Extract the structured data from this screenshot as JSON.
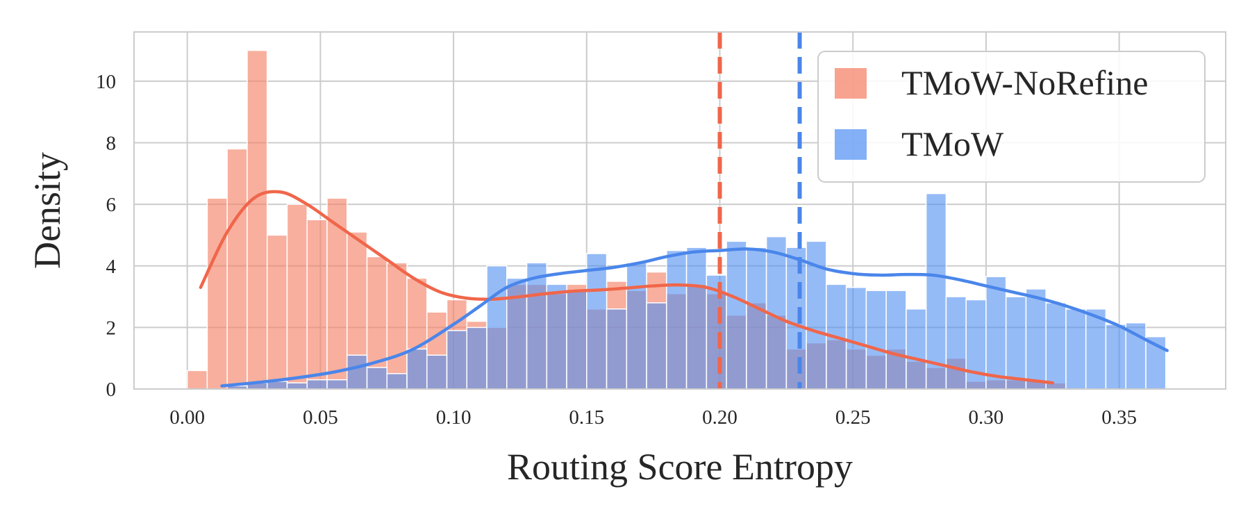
{
  "chart_data": {
    "type": "histogram",
    "title": "",
    "xlabel": "Routing Score Entropy",
    "ylabel": "Density",
    "xlim": [
      -0.02,
      0.39
    ],
    "ylim": [
      0,
      11.6
    ],
    "xticks": [
      0.0,
      0.05,
      0.1,
      0.15,
      0.2,
      0.25,
      0.3,
      0.35
    ],
    "xtick_labels": [
      "0.00",
      "0.05",
      "0.10",
      "0.15",
      "0.20",
      "0.25",
      "0.30",
      "0.35"
    ],
    "yticks": [
      0,
      2,
      4,
      6,
      8,
      10
    ],
    "ytick_labels": [
      "0",
      "2",
      "4",
      "6",
      "8",
      "10"
    ],
    "grid": true,
    "legend_position": "top-right",
    "bin_width": 0.0075,
    "series": [
      {
        "name": "TMoW-NoRefine",
        "color": "#f4846a",
        "fill_opacity": 0.65,
        "bin_start": 0.0,
        "densities": [
          0.6,
          6.2,
          7.8,
          11.0,
          5.0,
          6.0,
          5.5,
          6.2,
          5.1,
          4.3,
          4.1,
          3.6,
          2.5,
          2.9,
          2.2,
          2.0,
          3.4,
          3.4,
          3.1,
          3.4,
          2.6,
          3.5,
          3.2,
          3.8,
          3.1,
          3.4,
          3.1,
          2.4,
          2.8,
          2.4,
          1.3,
          1.5,
          1.6,
          1.3,
          1.1,
          1.3,
          0.9,
          0.7,
          1.0,
          0.25,
          0.3,
          0.3,
          0.3,
          0.2
        ],
        "kde": {
          "x": [
            0.005,
            0.015,
            0.025,
            0.035,
            0.045,
            0.055,
            0.065,
            0.075,
            0.085,
            0.095,
            0.105,
            0.115,
            0.125,
            0.135,
            0.145,
            0.155,
            0.165,
            0.175,
            0.185,
            0.195,
            0.205,
            0.215,
            0.225,
            0.235,
            0.245,
            0.255,
            0.265,
            0.275,
            0.285,
            0.295,
            0.305,
            0.315,
            0.325
          ],
          "y": [
            3.3,
            5.1,
            6.2,
            6.4,
            6.0,
            5.4,
            4.8,
            4.2,
            3.6,
            3.15,
            2.95,
            2.92,
            3.0,
            3.1,
            3.18,
            3.22,
            3.28,
            3.35,
            3.38,
            3.3,
            3.0,
            2.6,
            2.2,
            1.9,
            1.65,
            1.4,
            1.15,
            0.95,
            0.75,
            0.55,
            0.4,
            0.3,
            0.2
          ]
        },
        "mean": 0.2
      },
      {
        "name": "TMoW",
        "color": "#4f8ef2",
        "fill_opacity": 0.6,
        "bin_start": 0.015,
        "densities": [
          0.1,
          0.2,
          0.25,
          0.2,
          0.3,
          0.3,
          1.1,
          0.7,
          0.5,
          1.3,
          1.1,
          1.9,
          2.0,
          4.0,
          3.6,
          4.1,
          3.4,
          3.2,
          4.4,
          2.6,
          4.1,
          2.8,
          4.5,
          4.6,
          3.7,
          4.8,
          4.6,
          4.95,
          4.6,
          4.8,
          3.4,
          3.3,
          3.2,
          3.2,
          2.6,
          6.35,
          3.0,
          2.9,
          3.65,
          3.0,
          3.25,
          2.8,
          2.6,
          2.6,
          2.1,
          2.15,
          1.7
        ],
        "kde": {
          "x": [
            0.013,
            0.025,
            0.04,
            0.055,
            0.07,
            0.085,
            0.1,
            0.11,
            0.12,
            0.13,
            0.14,
            0.15,
            0.16,
            0.17,
            0.18,
            0.19,
            0.2,
            0.21,
            0.22,
            0.23,
            0.24,
            0.25,
            0.26,
            0.27,
            0.28,
            0.29,
            0.3,
            0.31,
            0.32,
            0.33,
            0.34,
            0.35,
            0.36,
            0.368
          ],
          "y": [
            0.1,
            0.2,
            0.35,
            0.55,
            0.85,
            1.3,
            2.1,
            2.7,
            3.3,
            3.6,
            3.75,
            3.85,
            3.95,
            4.1,
            4.3,
            4.45,
            4.5,
            4.55,
            4.45,
            4.2,
            3.9,
            3.75,
            3.7,
            3.72,
            3.7,
            3.55,
            3.35,
            3.15,
            2.95,
            2.7,
            2.4,
            2.05,
            1.6,
            1.25
          ]
        },
        "mean": 0.23
      }
    ]
  }
}
